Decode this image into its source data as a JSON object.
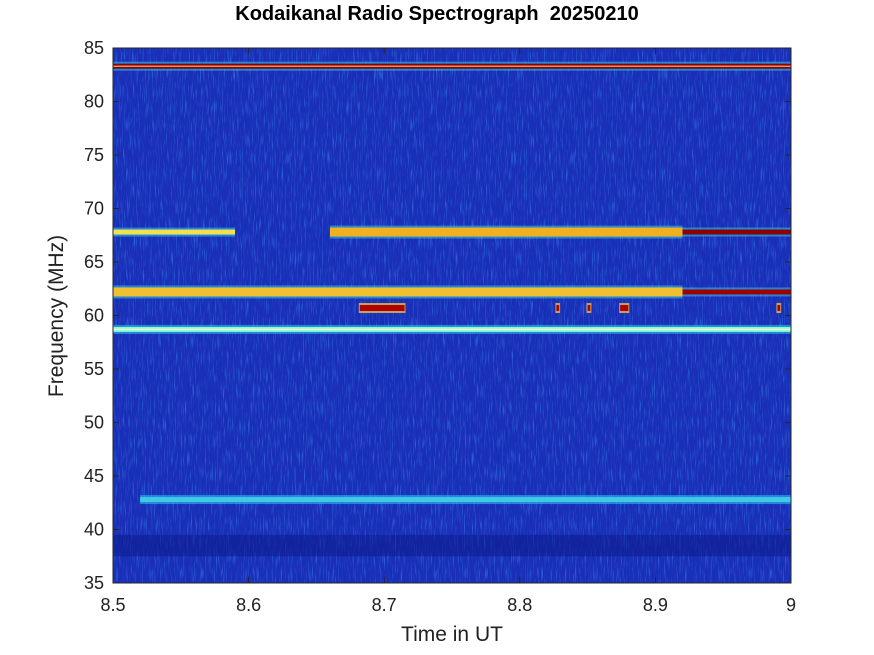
{
  "chart_data": {
    "type": "heatmap",
    "title": "Kodaikanal Radio Spectrograph  20250210",
    "xlabel": "Time in UT",
    "ylabel": "Frequency (MHz)",
    "xlim": [
      8.5,
      9.0
    ],
    "ylim": [
      35,
      85
    ],
    "xticks": [
      8.5,
      8.6,
      8.7,
      8.8,
      8.9,
      9.0
    ],
    "xtick_labels": [
      "8.5",
      "8.6",
      "8.7",
      "8.8",
      "8.9",
      "9"
    ],
    "yticks": [
      35,
      40,
      45,
      50,
      55,
      60,
      65,
      70,
      75,
      80,
      85
    ],
    "ytick_labels": [
      "35",
      "40",
      "45",
      "50",
      "55",
      "60",
      "65",
      "70",
      "75",
      "80",
      "85"
    ],
    "colormap": "jet",
    "background_color": "#1a2fb8",
    "grid": false,
    "bands": [
      {
        "freq": 83.3,
        "t_start": 8.5,
        "t_end": 9.0,
        "intensity": "high",
        "color": "#8b0000"
      },
      {
        "freq": 67.8,
        "t_start": 8.5,
        "t_end": 8.59,
        "intensity": "medium",
        "color": "#f2e050"
      },
      {
        "freq": 67.8,
        "t_start": 8.66,
        "t_end": 8.92,
        "intensity": "medium-high",
        "color": "#f0b020"
      },
      {
        "freq": 67.8,
        "t_start": 8.92,
        "t_end": 9.0,
        "intensity": "high",
        "color": "#8b0000"
      },
      {
        "freq": 62.2,
        "t_start": 8.5,
        "t_end": 8.92,
        "intensity": "medium-high",
        "color": "#f0c030"
      },
      {
        "freq": 62.2,
        "t_start": 8.92,
        "t_end": 9.0,
        "intensity": "high",
        "color": "#a00000"
      },
      {
        "freq": 58.7,
        "t_start": 8.5,
        "t_end": 9.0,
        "intensity": "medium",
        "color": "#7fffd4"
      },
      {
        "freq": 42.8,
        "t_start": 8.52,
        "t_end": 9.0,
        "intensity": "low",
        "color": "#3fc8e8"
      }
    ],
    "bursts": [
      {
        "freq": 60.7,
        "t_start": 8.682,
        "t_end": 8.715
      },
      {
        "freq": 60.7,
        "t_start": 8.827,
        "t_end": 8.829
      },
      {
        "freq": 60.7,
        "t_start": 8.85,
        "t_end": 8.852
      },
      {
        "freq": 60.7,
        "t_start": 8.874,
        "t_end": 8.88
      },
      {
        "freq": 60.7,
        "t_start": 8.99,
        "t_end": 8.992
      }
    ]
  }
}
